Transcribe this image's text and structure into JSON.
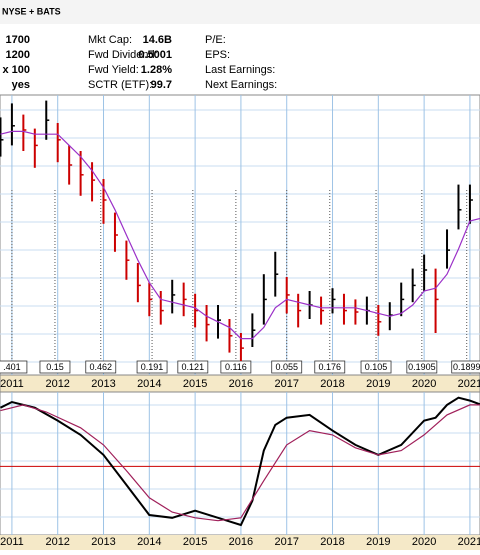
{
  "header": {
    "exchange": "NYSE + BATS",
    "rows": [
      {
        "left": "1700",
        "label1": "Mkt Cap:",
        "value1": "14.6B",
        "label2": "P/E:"
      },
      {
        "left": "1200",
        "label1": "Fwd Dividend:",
        "value1": "0.5001",
        "label2": "EPS:"
      },
      {
        "left": "x 100",
        "label1": "Fwd Yield:",
        "value1": "1.28%",
        "label2": "Last Earnings:"
      },
      {
        "left": "yes",
        "label1": "SCTR (ETF):",
        "value1": "99.7",
        "label2": "Next Earnings:"
      }
    ]
  },
  "chart_data": [
    {
      "type": "ohlc",
      "xlim": [
        2010.74,
        2021.22
      ],
      "ylim": [
        0,
        100
      ],
      "xticks": [
        2011,
        2012,
        2013,
        2014,
        2015,
        2016,
        2017,
        2018,
        2019,
        2020,
        2021
      ],
      "x": [
        2010.75,
        2011,
        2011.25,
        2011.5,
        2011.75,
        2012,
        2012.25,
        2012.5,
        2012.75,
        2013,
        2013.25,
        2013.5,
        2013.75,
        2014,
        2014.25,
        2014.5,
        2014.75,
        2015,
        2015.25,
        2015.5,
        2015.75,
        2016,
        2016.25,
        2016.5,
        2016.75,
        2017,
        2017.25,
        2017.5,
        2017.75,
        2018,
        2018.25,
        2018.5,
        2018.75,
        2019,
        2019.25,
        2019.5,
        2019.75,
        2020,
        2020.25,
        2020.5,
        2020.75,
        2021,
        2021.25
      ],
      "close": [
        84,
        89,
        87.5,
        82,
        91,
        84,
        75,
        71.5,
        69.6,
        62.5,
        50,
        41,
        32,
        27,
        23,
        28.6,
        27,
        23,
        18,
        19.6,
        14,
        9.6,
        16,
        27,
        36,
        28.6,
        23,
        25,
        23,
        27,
        23,
        22.5,
        23,
        19,
        21.4,
        27,
        32,
        37.5,
        27,
        44.6,
        59,
        62.5,
        44.6
      ],
      "high": [
        92,
        97,
        93,
        88,
        98,
        90,
        82,
        80,
        76,
        70,
        58,
        48,
        40,
        33,
        30,
        34,
        33,
        29,
        25,
        25,
        20,
        15,
        22,
        36,
        44,
        35,
        29,
        30,
        28,
        31,
        29,
        27,
        28,
        25,
        26,
        33,
        38,
        43,
        38,
        52,
        68,
        68,
        50
      ],
      "low": [
        78,
        82,
        80,
        74,
        84,
        76,
        68,
        64,
        62,
        54,
        44,
        34,
        26,
        21,
        18,
        22,
        21,
        17,
        12,
        13,
        8,
        5,
        10,
        18,
        28,
        22,
        17,
        20,
        18,
        22,
        18,
        18,
        18,
        14,
        16,
        21,
        26,
        30,
        15,
        38,
        52,
        54,
        40
      ],
      "up_color": "#000000",
      "down_color": "#cc0000",
      "ma": {
        "color": "#9b30c8",
        "values": [
          86,
          87,
          87,
          86,
          86,
          86,
          82,
          78,
          73,
          67,
          59,
          50,
          41,
          33,
          27,
          26,
          25,
          24,
          21,
          19,
          17,
          13,
          13,
          17,
          24,
          27,
          26,
          25,
          24,
          24,
          24,
          24,
          23,
          22,
          21,
          22,
          25,
          30,
          31,
          36,
          45,
          55,
          56
        ]
      },
      "dividends": [
        {
          "x": 2011,
          "label": ".401"
        },
        {
          "x": 2011.94,
          "label": "0.15"
        },
        {
          "x": 2012.94,
          "label": "0.462"
        },
        {
          "x": 2014.06,
          "label": "0.191"
        },
        {
          "x": 2014.95,
          "label": "0.121"
        },
        {
          "x": 2015.89,
          "label": "0.116"
        },
        {
          "x": 2017,
          "label": "0.055"
        },
        {
          "x": 2017.94,
          "label": "0.176"
        },
        {
          "x": 2018.95,
          "label": "0.105"
        },
        {
          "x": 2019.95,
          "label": "0.1905"
        },
        {
          "x": 2020.93,
          "label": "0.1899"
        }
      ]
    },
    {
      "type": "line",
      "xlim": [
        2010.74,
        2021.22
      ],
      "ylim": [
        0,
        100
      ],
      "xticks": [
        2011,
        2012,
        2013,
        2014,
        2015,
        2016,
        2017,
        2018,
        2019,
        2020,
        2021
      ],
      "ref_line": {
        "value": 48,
        "color": "#cc0000"
      },
      "series": [
        {
          "color": "#000000",
          "x": [
            2010.75,
            2011,
            2011.5,
            2012,
            2012.5,
            2013,
            2013.5,
            2014,
            2014.5,
            2015,
            2015.5,
            2016,
            2016.25,
            2016.5,
            2016.75,
            2017,
            2017.5,
            2018,
            2018.5,
            2019,
            2019.5,
            2020,
            2020.25,
            2020.5,
            2020.75,
            2021,
            2021.25
          ],
          "values": [
            89,
            93,
            89,
            80,
            70,
            56,
            35,
            14,
            12,
            17,
            12,
            7,
            24,
            59,
            77,
            82,
            84,
            73,
            63,
            56,
            63,
            80,
            82,
            91,
            96,
            94,
            91
          ]
        },
        {
          "color": "#a0205a",
          "x": [
            2010.75,
            2011.25,
            2011.75,
            2012.5,
            2013,
            2013.5,
            2014,
            2014.5,
            2015,
            2015.5,
            2016,
            2016.5,
            2017,
            2017.5,
            2018,
            2018.5,
            2019,
            2019.5,
            2020,
            2020.5,
            2021,
            2021.25
          ],
          "values": [
            87,
            91,
            86,
            75,
            63,
            45,
            26,
            16,
            12,
            10,
            12,
            38,
            63,
            73,
            70,
            61,
            56,
            59,
            70,
            84,
            91,
            91
          ]
        }
      ]
    }
  ]
}
